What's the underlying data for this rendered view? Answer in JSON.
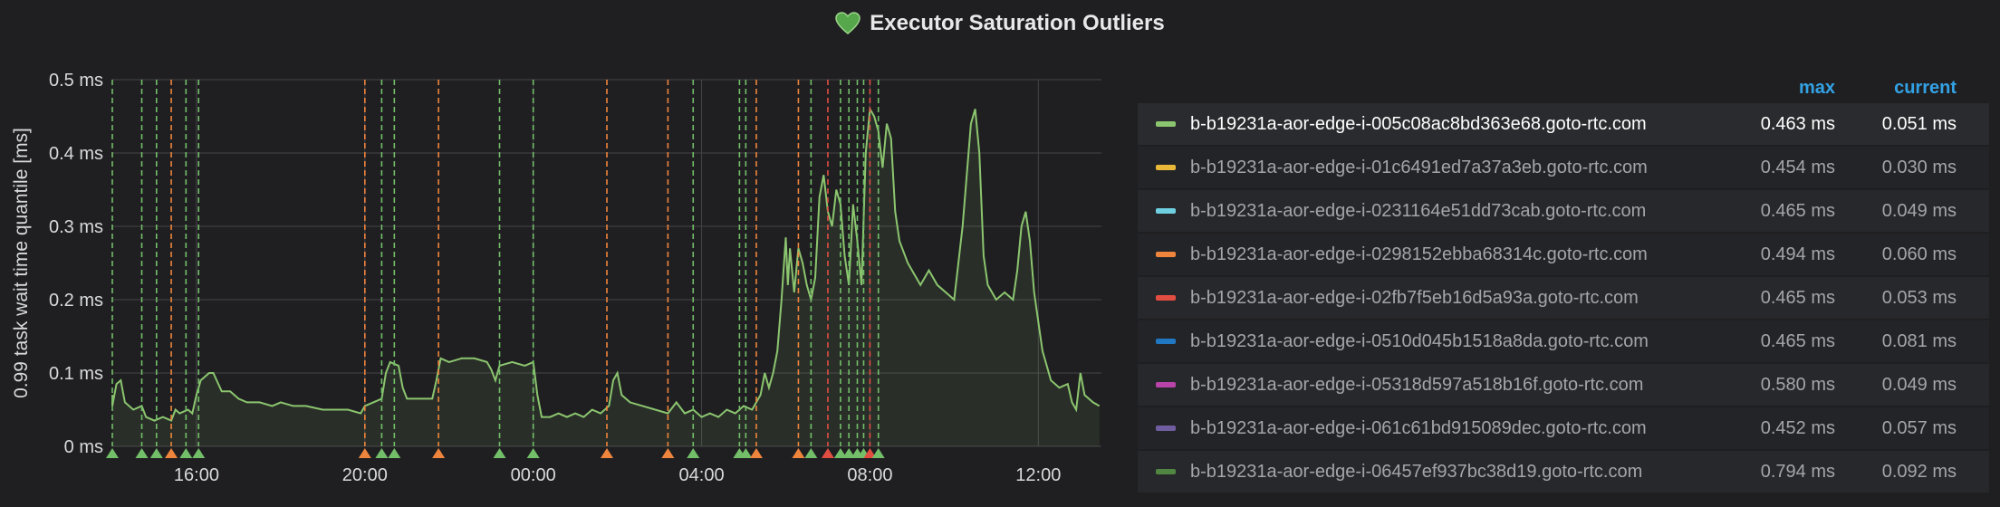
{
  "panel": {
    "title": "Executor Saturation Outliers"
  },
  "legend": {
    "header_max": "max",
    "header_current": "current",
    "items": [
      {
        "name": "b-b19231a-aor-edge-i-005c08ac8bd363e68.goto-rtc.com",
        "color": "#8cc56f",
        "max": "0.463 ms",
        "current": "0.051 ms"
      },
      {
        "name": "b-b19231a-aor-edge-i-01c6491ed7a37a3eb.goto-rtc.com",
        "color": "#eab839",
        "max": "0.454 ms",
        "current": "0.030 ms"
      },
      {
        "name": "b-b19231a-aor-edge-i-0231164e51dd73cab.goto-rtc.com",
        "color": "#6ed0e0",
        "max": "0.465 ms",
        "current": "0.049 ms"
      },
      {
        "name": "b-b19231a-aor-edge-i-0298152ebba68314c.goto-rtc.com",
        "color": "#ef843c",
        "max": "0.494 ms",
        "current": "0.060 ms"
      },
      {
        "name": "b-b19231a-aor-edge-i-02fb7f5eb16d5a93a.goto-rtc.com",
        "color": "#e24d42",
        "max": "0.465 ms",
        "current": "0.053 ms"
      },
      {
        "name": "b-b19231a-aor-edge-i-0510d045b1518a8da.goto-rtc.com",
        "color": "#1f78c1",
        "max": "0.465 ms",
        "current": "0.081 ms"
      },
      {
        "name": "b-b19231a-aor-edge-i-05318d597a518b16f.goto-rtc.com",
        "color": "#ba43a9",
        "max": "0.580 ms",
        "current": "0.049 ms"
      },
      {
        "name": "b-b19231a-aor-edge-i-061c61bd915089dec.goto-rtc.com",
        "color": "#705da0",
        "max": "0.452 ms",
        "current": "0.057 ms"
      },
      {
        "name": "b-b19231a-aor-edge-i-06457ef937bc38d19.goto-rtc.com",
        "color": "#508642",
        "max": "0.794 ms",
        "current": "0.092 ms"
      }
    ]
  },
  "chart_data": {
    "type": "area",
    "ylabel": "0.99 task wait time quantile [ms]",
    "xlabel": "",
    "ylim": [
      0,
      0.5
    ],
    "yticks": [
      "0 ms",
      "0.1 ms",
      "0.2 ms",
      "0.3 ms",
      "0.4 ms",
      "0.5 ms"
    ],
    "xlim": [
      14.0,
      37.5
    ],
    "xticks": [
      {
        "label": "16:00",
        "x": 16
      },
      {
        "label": "20:00",
        "x": 20
      },
      {
        "label": "00:00",
        "x": 24
      },
      {
        "label": "04:00",
        "x": 28
      },
      {
        "label": "08:00",
        "x": 32
      },
      {
        "label": "12:00",
        "x": 36
      }
    ],
    "grid": true,
    "series": [
      {
        "name": "b-b19231a-aor-edge-i-005c08ac8bd363e68.goto-rtc.com",
        "color": "#8cc56f",
        "points": [
          [
            13.9,
            0.07
          ],
          [
            14.0,
            0.055
          ],
          [
            14.1,
            0.085
          ],
          [
            14.2,
            0.09
          ],
          [
            14.3,
            0.06
          ],
          [
            14.5,
            0.05
          ],
          [
            14.7,
            0.055
          ],
          [
            14.8,
            0.04
          ],
          [
            15.0,
            0.035
          ],
          [
            15.2,
            0.04
          ],
          [
            15.4,
            0.035
          ],
          [
            15.5,
            0.05
          ],
          [
            15.6,
            0.045
          ],
          [
            15.8,
            0.05
          ],
          [
            15.9,
            0.045
          ],
          [
            16.0,
            0.07
          ],
          [
            16.1,
            0.09
          ],
          [
            16.3,
            0.1
          ],
          [
            16.4,
            0.1
          ],
          [
            16.6,
            0.075
          ],
          [
            16.8,
            0.075
          ],
          [
            17.0,
            0.065
          ],
          [
            17.2,
            0.06
          ],
          [
            17.5,
            0.06
          ],
          [
            17.8,
            0.055
          ],
          [
            18.0,
            0.06
          ],
          [
            18.3,
            0.055
          ],
          [
            18.6,
            0.055
          ],
          [
            19.0,
            0.05
          ],
          [
            19.3,
            0.05
          ],
          [
            19.6,
            0.05
          ],
          [
            19.9,
            0.045
          ],
          [
            20.0,
            0.055
          ],
          [
            20.2,
            0.06
          ],
          [
            20.4,
            0.065
          ],
          [
            20.5,
            0.1
          ],
          [
            20.6,
            0.115
          ],
          [
            20.8,
            0.11
          ],
          [
            20.9,
            0.08
          ],
          [
            21.0,
            0.065
          ],
          [
            21.3,
            0.065
          ],
          [
            21.6,
            0.065
          ],
          [
            21.7,
            0.09
          ],
          [
            21.8,
            0.12
          ],
          [
            22.0,
            0.115
          ],
          [
            22.3,
            0.12
          ],
          [
            22.6,
            0.12
          ],
          [
            22.9,
            0.115
          ],
          [
            23.0,
            0.105
          ],
          [
            23.1,
            0.09
          ],
          [
            23.2,
            0.11
          ],
          [
            23.5,
            0.115
          ],
          [
            23.8,
            0.11
          ],
          [
            24.0,
            0.115
          ],
          [
            24.1,
            0.07
          ],
          [
            24.2,
            0.04
          ],
          [
            24.4,
            0.04
          ],
          [
            24.6,
            0.045
          ],
          [
            24.8,
            0.04
          ],
          [
            25.0,
            0.045
          ],
          [
            25.2,
            0.04
          ],
          [
            25.4,
            0.05
          ],
          [
            25.6,
            0.045
          ],
          [
            25.8,
            0.055
          ],
          [
            25.9,
            0.09
          ],
          [
            26.0,
            0.1
          ],
          [
            26.1,
            0.07
          ],
          [
            26.3,
            0.06
          ],
          [
            26.6,
            0.055
          ],
          [
            26.9,
            0.05
          ],
          [
            27.2,
            0.045
          ],
          [
            27.4,
            0.06
          ],
          [
            27.6,
            0.045
          ],
          [
            27.8,
            0.05
          ],
          [
            28.0,
            0.04
          ],
          [
            28.2,
            0.045
          ],
          [
            28.4,
            0.04
          ],
          [
            28.6,
            0.05
          ],
          [
            28.8,
            0.045
          ],
          [
            29.0,
            0.055
          ],
          [
            29.2,
            0.05
          ],
          [
            29.4,
            0.07
          ],
          [
            29.5,
            0.1
          ],
          [
            29.6,
            0.08
          ],
          [
            29.7,
            0.1
          ],
          [
            29.8,
            0.13
          ],
          [
            29.9,
            0.2
          ],
          [
            30.0,
            0.285
          ],
          [
            30.05,
            0.22
          ],
          [
            30.1,
            0.27
          ],
          [
            30.2,
            0.21
          ],
          [
            30.3,
            0.27
          ],
          [
            30.4,
            0.25
          ],
          [
            30.5,
            0.22
          ],
          [
            30.6,
            0.2
          ],
          [
            30.7,
            0.23
          ],
          [
            30.8,
            0.34
          ],
          [
            30.9,
            0.37
          ],
          [
            31.0,
            0.32
          ],
          [
            31.1,
            0.3
          ],
          [
            31.2,
            0.35
          ],
          [
            31.3,
            0.33
          ],
          [
            31.4,
            0.26
          ],
          [
            31.5,
            0.22
          ],
          [
            31.6,
            0.33
          ],
          [
            31.7,
            0.28
          ],
          [
            31.8,
            0.22
          ],
          [
            31.9,
            0.4
          ],
          [
            32.0,
            0.46
          ],
          [
            32.1,
            0.45
          ],
          [
            32.2,
            0.43
          ],
          [
            32.3,
            0.38
          ],
          [
            32.4,
            0.44
          ],
          [
            32.5,
            0.42
          ],
          [
            32.6,
            0.32
          ],
          [
            32.7,
            0.28
          ],
          [
            32.9,
            0.25
          ],
          [
            33.0,
            0.24
          ],
          [
            33.2,
            0.22
          ],
          [
            33.4,
            0.24
          ],
          [
            33.6,
            0.22
          ],
          [
            33.8,
            0.21
          ],
          [
            34.0,
            0.2
          ],
          [
            34.2,
            0.3
          ],
          [
            34.4,
            0.44
          ],
          [
            34.5,
            0.46
          ],
          [
            34.6,
            0.4
          ],
          [
            34.7,
            0.26
          ],
          [
            34.8,
            0.22
          ],
          [
            35.0,
            0.2
          ],
          [
            35.2,
            0.21
          ],
          [
            35.4,
            0.2
          ],
          [
            35.5,
            0.24
          ],
          [
            35.6,
            0.3
          ],
          [
            35.7,
            0.32
          ],
          [
            35.8,
            0.28
          ],
          [
            35.9,
            0.21
          ],
          [
            36.0,
            0.17
          ],
          [
            36.1,
            0.13
          ],
          [
            36.2,
            0.11
          ],
          [
            36.3,
            0.09
          ],
          [
            36.5,
            0.08
          ],
          [
            36.7,
            0.085
          ],
          [
            36.8,
            0.06
          ],
          [
            36.9,
            0.05
          ],
          [
            37.0,
            0.1
          ],
          [
            37.1,
            0.07
          ],
          [
            37.2,
            0.065
          ],
          [
            37.3,
            0.06
          ],
          [
            37.45,
            0.055
          ]
        ]
      }
    ],
    "annotations": {
      "markers": [
        {
          "x": 14.0,
          "color": "#73bf69"
        },
        {
          "x": 14.7,
          "color": "#73bf69"
        },
        {
          "x": 15.05,
          "color": "#73bf69"
        },
        {
          "x": 15.4,
          "color": "#ef843c"
        },
        {
          "x": 15.75,
          "color": "#73bf69"
        },
        {
          "x": 16.05,
          "color": "#73bf69"
        },
        {
          "x": 20.0,
          "color": "#ef843c"
        },
        {
          "x": 20.4,
          "color": "#73bf69"
        },
        {
          "x": 20.7,
          "color": "#73bf69"
        },
        {
          "x": 21.75,
          "color": "#ef843c"
        },
        {
          "x": 23.2,
          "color": "#73bf69"
        },
        {
          "x": 24.0,
          "color": "#73bf69"
        },
        {
          "x": 25.75,
          "color": "#ef843c"
        },
        {
          "x": 27.2,
          "color": "#ef843c"
        },
        {
          "x": 27.8,
          "color": "#73bf69"
        },
        {
          "x": 28.9,
          "color": "#73bf69"
        },
        {
          "x": 29.05,
          "color": "#73bf69"
        },
        {
          "x": 29.3,
          "color": "#ef843c"
        },
        {
          "x": 30.3,
          "color": "#ef843c"
        },
        {
          "x": 30.6,
          "color": "#73bf69"
        },
        {
          "x": 31.0,
          "color": "#e24d42"
        },
        {
          "x": 31.3,
          "color": "#73bf69"
        },
        {
          "x": 31.5,
          "color": "#73bf69"
        },
        {
          "x": 31.7,
          "color": "#73bf69"
        },
        {
          "x": 31.85,
          "color": "#73bf69"
        },
        {
          "x": 32.0,
          "color": "#e24d42"
        },
        {
          "x": 32.2,
          "color": "#73bf69"
        }
      ]
    }
  }
}
